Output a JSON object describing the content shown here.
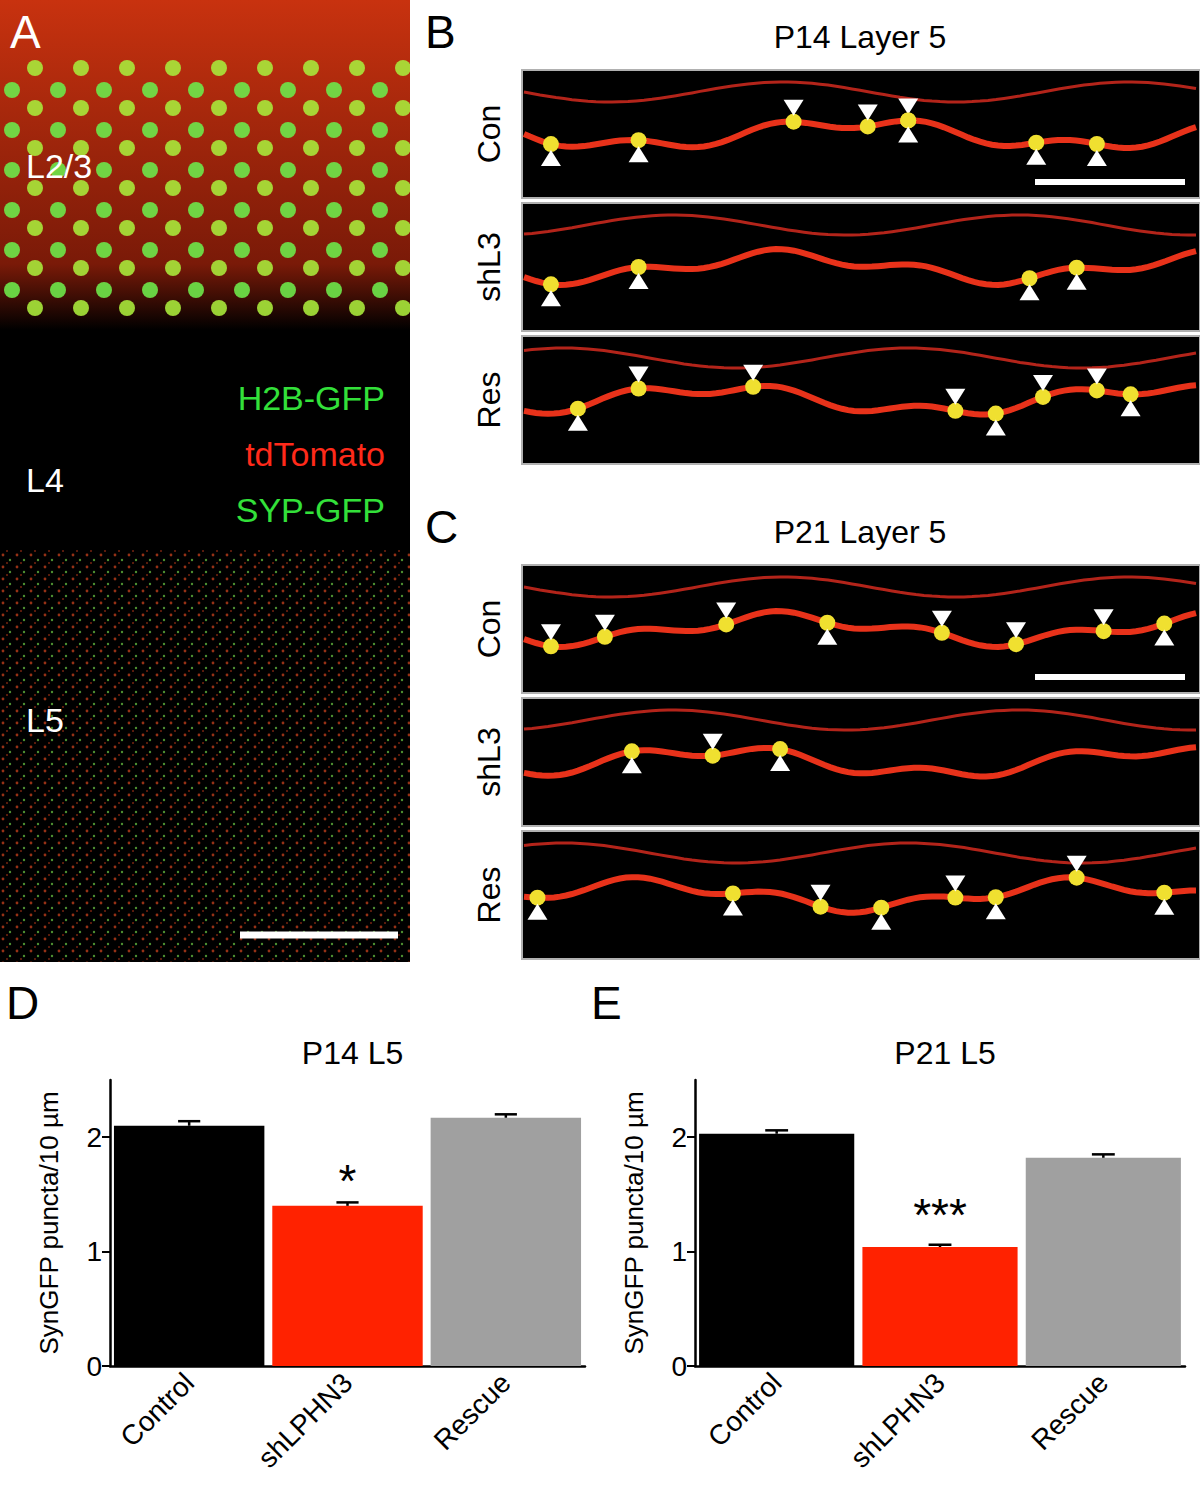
{
  "figure": {
    "panel_a": {
      "letter": "A",
      "layers": [
        "L2/3",
        "L4",
        "L5"
      ],
      "legend": [
        {
          "text": "H2B-GFP",
          "color": "#33e03a"
        },
        {
          "text": "tdTomato",
          "color": "#ff2a1a"
        },
        {
          "text": "SYP-GFP",
          "color": "#33e03a"
        }
      ]
    },
    "image_panels": [
      {
        "letter": "B",
        "title": "P14 Layer 5",
        "rows": [
          "Con",
          "shL3",
          "Res"
        ]
      },
      {
        "letter": "C",
        "title": "P21 Layer 5",
        "rows": [
          "Con",
          "shL3",
          "Res"
        ]
      }
    ],
    "chart_letters": [
      "D",
      "E"
    ]
  },
  "chart_data": [
    {
      "type": "bar",
      "title": "P14 L5",
      "y_label": "SynGFP puncta/10 µm",
      "categories": [
        "Control",
        "shLPHN3",
        "Rescue"
      ],
      "values": [
        2.1,
        1.4,
        2.17
      ],
      "errors": [
        0.04,
        0.03,
        0.03
      ],
      "colors": [
        "#000000",
        "#ff2200",
        "#a0a0a0"
      ],
      "ylim": [
        0,
        2.5
      ],
      "yticks": [
        0,
        1,
        2
      ],
      "grid": false,
      "annotations": [
        {
          "category": "shLPHN3",
          "y": 1.62,
          "text": "*"
        }
      ]
    },
    {
      "type": "bar",
      "title": "P21 L5",
      "y_label": "SynGFP puncta/10 µm",
      "categories": [
        "Control",
        "shLPHN3",
        "Rescue"
      ],
      "values": [
        2.03,
        1.04,
        1.82
      ],
      "errors": [
        0.03,
        0.02,
        0.03
      ],
      "colors": [
        "#000000",
        "#ff2200",
        "#a0a0a0"
      ],
      "ylim": [
        0,
        2.5
      ],
      "yticks": [
        0,
        1,
        2
      ],
      "grid": false,
      "annotations": [
        {
          "category": "shLPHN3",
          "y": 1.32,
          "text": "***"
        }
      ]
    }
  ]
}
